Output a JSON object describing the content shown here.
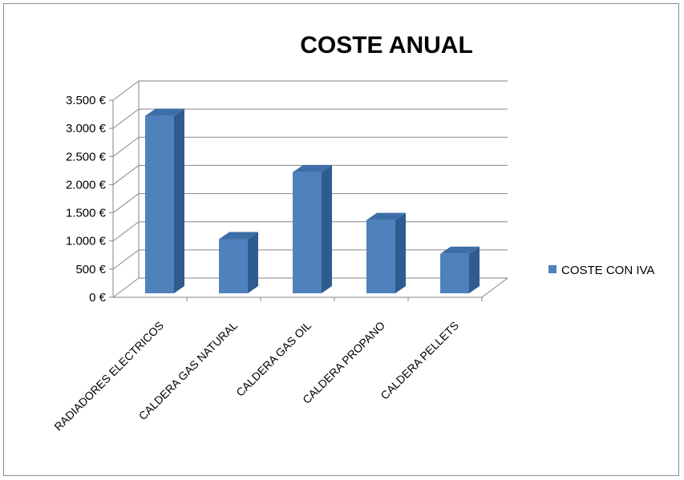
{
  "chart_data": {
    "type": "bar",
    "title": "COSTE ANUAL",
    "xlabel": "",
    "ylabel": "",
    "categories": [
      "RADIADORES ELECTRICOS",
      "CALDERA GAS NATURAL",
      "CALDERA GAS OIL",
      "CALDERA PROPANO",
      "CALDERA PELLETS"
    ],
    "series": [
      {
        "name": "COSTE CON IVA",
        "values": [
          3150,
          960,
          2150,
          1300,
          700
        ],
        "color": "#4f81bd"
      }
    ],
    "ylim": [
      0,
      3500
    ],
    "yticks": [
      0,
      500,
      1000,
      1500,
      2000,
      2500,
      3000,
      3500
    ],
    "ytick_labels": [
      "0 €",
      "500 €",
      "1.000 €",
      "1.500 €",
      "2.000 €",
      "2.500 €",
      "3.000 €",
      "3.500 €"
    ],
    "grid": true,
    "legend_position": "right",
    "style": "3d-column"
  }
}
